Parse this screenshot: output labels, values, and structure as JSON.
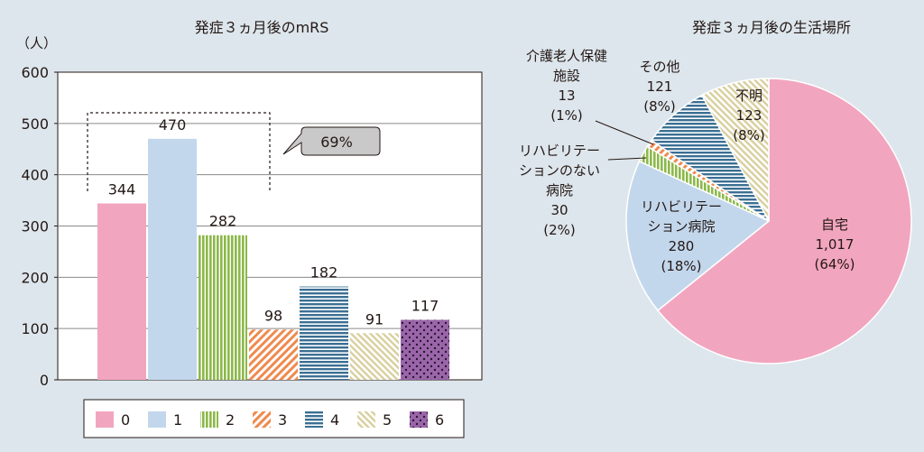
{
  "chart_data": [
    {
      "type": "bar",
      "title": "発症３ヵ月後のmRS",
      "ylabel": "（人）",
      "ylim": [
        0,
        600
      ],
      "yticks": [
        0,
        100,
        200,
        300,
        400,
        500,
        600
      ],
      "grid": true,
      "legend": "bottom",
      "categories": [
        "0",
        "1",
        "2",
        "3",
        "4",
        "5",
        "6"
      ],
      "values": [
        344,
        470,
        282,
        98,
        182,
        91,
        117
      ],
      "value_labels": [
        "344",
        "470",
        "282",
        "98",
        "182",
        "91",
        "117"
      ],
      "colors": [
        "#f2a5bf",
        "#c3d7ec",
        "#8cb84a",
        "#ee8a4e",
        "#3b6f93",
        "#d8cf9e",
        "#8e5b9e"
      ],
      "patterns": [
        "solid",
        "solid",
        "vertical-lines",
        "diagonal-lines",
        "horizontal-lines",
        "diagonal-lines",
        "dots"
      ],
      "annotation": {
        "text": "69%",
        "covers_categories": [
          "0",
          "1",
          "2"
        ]
      }
    },
    {
      "type": "pie",
      "title": "発症３ヵ月後の生活場所",
      "slices": [
        {
          "name": "自宅",
          "value": 1017,
          "value_label": "1,017",
          "percent": "(64%)",
          "color": "#f2a5bf",
          "pattern": "solid"
        },
        {
          "name": "リハビリテーション病院",
          "name_lines": [
            "リハビリテー",
            "ション病院"
          ],
          "value": 280,
          "value_label": "280",
          "percent": "(18%)",
          "color": "#c3d7ec",
          "pattern": "solid"
        },
        {
          "name": "リハビリテーションのない病院",
          "name_lines": [
            "リハビリテー",
            "ションのない",
            "病院"
          ],
          "value": 30,
          "value_label": "30",
          "percent": "(2%)",
          "color": "#8cb84a",
          "pattern": "vertical-lines"
        },
        {
          "name": "介護老人保健施設",
          "name_lines": [
            "介護老人保健",
            "施設"
          ],
          "value": 13,
          "value_label": "13",
          "percent": "(1%)",
          "color": "#ee8a4e",
          "pattern": "diagonal-lines"
        },
        {
          "name": "その他",
          "name_lines": [
            "その他"
          ],
          "value": 121,
          "value_label": "121",
          "percent": "(8%)",
          "color": "#3b6f93",
          "pattern": "horizontal-lines"
        },
        {
          "name": "不明",
          "name_lines": [
            "不明"
          ],
          "value": 123,
          "value_label": "123",
          "percent": "(8%)",
          "color": "#d8cf9e",
          "pattern": "diagonal-lines"
        }
      ]
    }
  ]
}
